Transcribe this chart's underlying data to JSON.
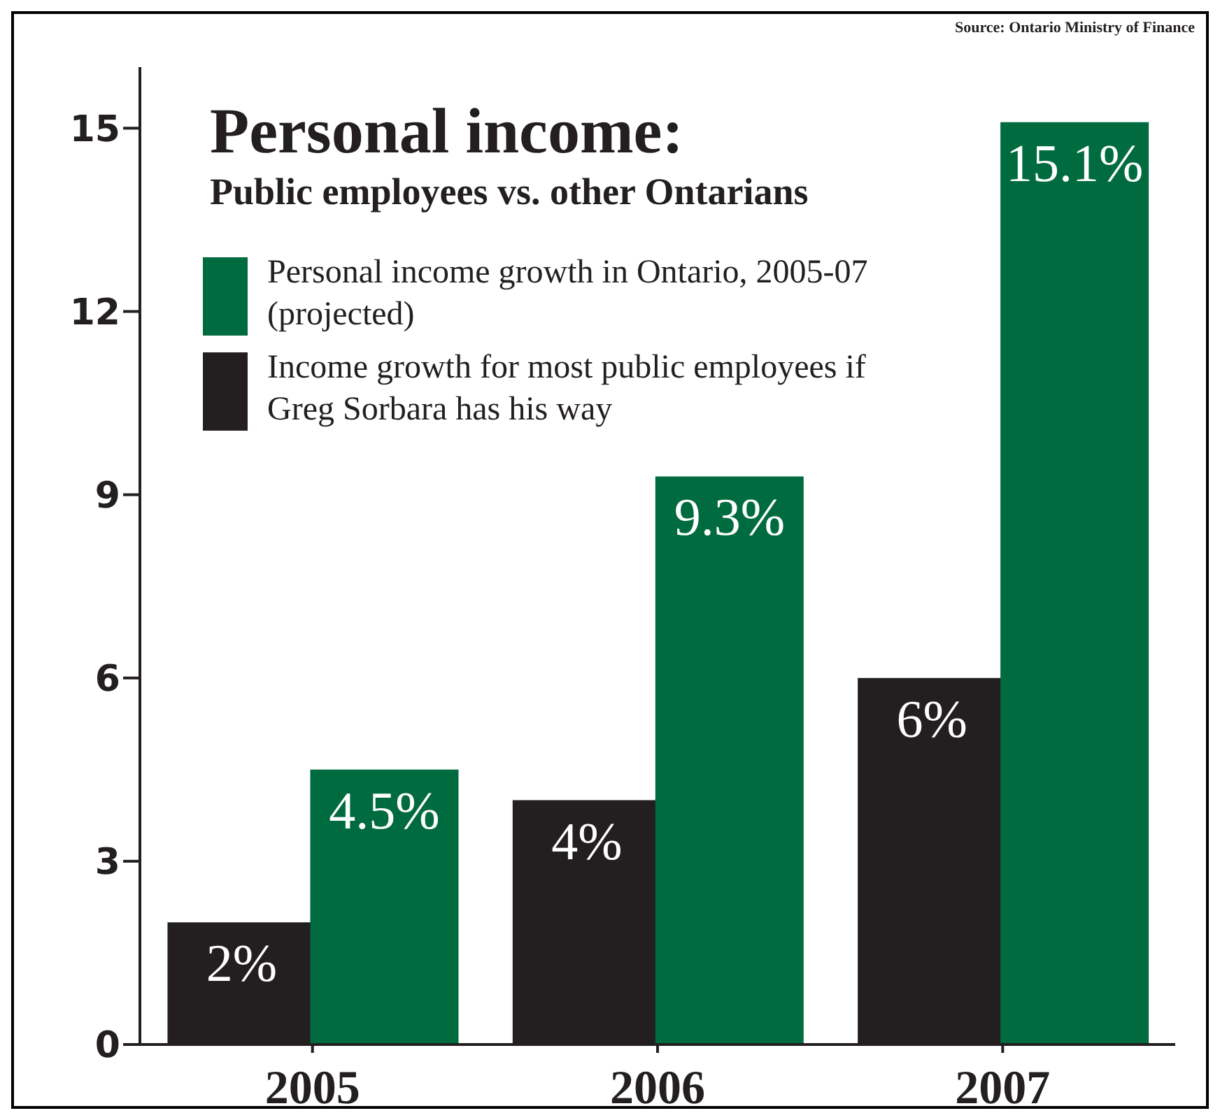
{
  "chart_data": {
    "type": "bar",
    "title": "Personal income:",
    "subtitle": "Public employees vs. other Ontarians",
    "annotations": [
      "Source: Ontario Ministry of Finance"
    ],
    "categories": [
      "2005",
      "2006",
      "2007"
    ],
    "series": [
      {
        "name": "Income growth for most public employees if Greg Sorbara has his way",
        "color": "#231f20",
        "values": [
          2,
          4,
          6
        ],
        "value_labels": [
          "2%",
          "4%",
          "6%"
        ]
      },
      {
        "name": "Personal income growth in Ontario, 2005-07 (projected)",
        "color": "#006b3f",
        "values": [
          4.5,
          9.3,
          15.1
        ],
        "value_labels": [
          "4.5%",
          "9.3%",
          "15.1%"
        ]
      }
    ],
    "ylim": [
      0,
      16
    ],
    "yticks": [
      0,
      3,
      6,
      9,
      12,
      15
    ],
    "legend": "top left"
  }
}
